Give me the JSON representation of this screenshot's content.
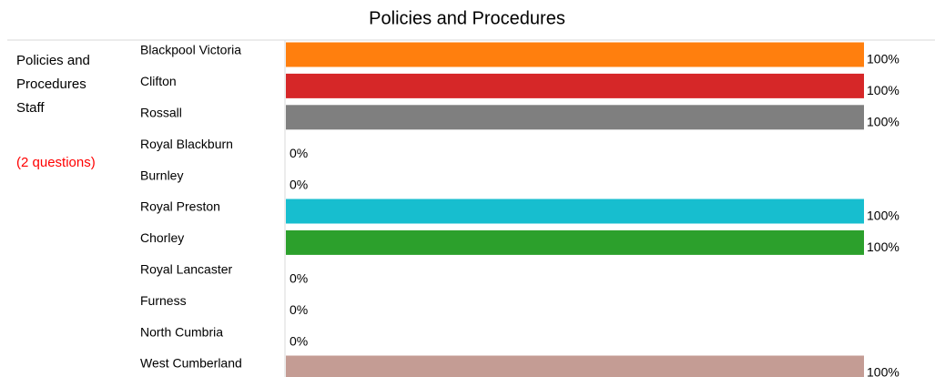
{
  "chart_data": {
    "type": "bar",
    "orientation": "horizontal",
    "title": "Policies and Procedures",
    "side_label": "Policies and Procedures Staff",
    "side_note": "(2 questions)",
    "categories": [
      "Blackpool Victoria",
      "Clifton",
      "Rossall",
      "Royal Blackburn",
      "Burnley",
      "Royal Preston",
      "Chorley",
      "Royal Lancaster",
      "Furness",
      "North Cumbria",
      "West Cumberland"
    ],
    "values": [
      100,
      100,
      100,
      0,
      0,
      100,
      100,
      0,
      0,
      0,
      100
    ],
    "value_labels": [
      "100%",
      "100%",
      "100%",
      "0%",
      "0%",
      "100%",
      "100%",
      "0%",
      "0%",
      "0%",
      "100%"
    ],
    "colors": [
      "#ff7f0e",
      "#d62728",
      "#7f7f7f",
      "#e377c2",
      "#1f77b4",
      "#17becf",
      "#2ca02c",
      "#bcbd22",
      "#8c564b",
      "#e377c2",
      "#c49c94"
    ],
    "xlim": [
      0,
      100
    ]
  }
}
